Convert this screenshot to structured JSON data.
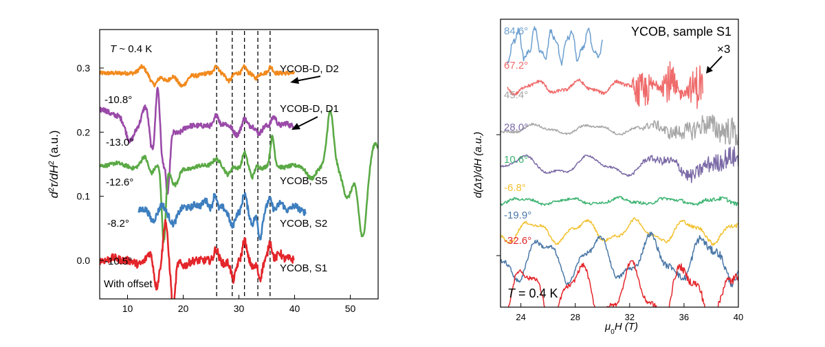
{
  "chart_data": [
    {
      "type": "line",
      "panel": "left",
      "xlabel": "",
      "ylabel_parts": [
        "d",
        "2",
        "τ",
        "/dH",
        "2",
        " (a.u.)"
      ],
      "xlim": [
        5,
        55
      ],
      "ylim": [
        -0.06,
        0.36
      ],
      "xticks": [
        10,
        20,
        30,
        40,
        50
      ],
      "xtick_labels": [
        "10",
        "20",
        "30",
        "40",
        "50"
      ],
      "yticks": [
        0.0,
        0.1,
        0.2,
        0.3
      ],
      "ytick_labels": [
        "0.0",
        "0.1",
        "0.2",
        "0.3"
      ],
      "annotations": {
        "temperature_parts": [
          "T",
          " ~ 0.4 K"
        ],
        "offset_note": "With offset"
      },
      "dashed_lines_x": [
        26.0,
        28.8,
        31.0,
        33.4,
        35.6
      ],
      "series": [
        {
          "name": "YCOB-D, D2",
          "angle": "-10.8°",
          "color": "#f28a1e",
          "x_range": [
            5,
            40
          ],
          "baseline": 0.292,
          "features": [
            [
              12.6,
              0.01,
              0.8
            ],
            [
              14.8,
              -0.018,
              0.9
            ],
            [
              17.0,
              -0.012,
              0.9
            ],
            [
              19.8,
              -0.02,
              1.2
            ],
            [
              22.5,
              -0.004,
              1.0
            ],
            [
              26.0,
              0.012,
              0.5
            ],
            [
              28.2,
              -0.012,
              0.7
            ],
            [
              31.0,
              0.01,
              0.5
            ],
            [
              33.0,
              -0.008,
              0.6
            ],
            [
              35.7,
              0.01,
              0.5
            ]
          ],
          "noise": 0.003,
          "points": []
        },
        {
          "name": "YCOB-D, D1",
          "angle": "-13.0°",
          "color": "#9a4aa8",
          "x_range": [
            5,
            40
          ],
          "baseline": 0.21,
          "features": [
            [
              5.5,
              0.025,
              2.0
            ],
            [
              8.5,
              0.012,
              1.5
            ],
            [
              10.4,
              -0.026,
              1.0
            ],
            [
              13.2,
              0.03,
              0.8
            ],
            [
              14.4,
              -0.04,
              0.6
            ],
            [
              15.4,
              0.062,
              0.45
            ],
            [
              16.3,
              -0.05,
              0.45
            ],
            [
              17.2,
              -0.104,
              0.55
            ],
            [
              19.0,
              -0.012,
              1.2
            ],
            [
              22.0,
              0.0,
              1.0
            ],
            [
              26.0,
              0.018,
              0.5
            ],
            [
              27.4,
              0.004,
              0.5
            ],
            [
              29.6,
              -0.014,
              0.8
            ],
            [
              31.0,
              0.012,
              0.5
            ],
            [
              33.6,
              -0.012,
              0.7
            ],
            [
              36.3,
              0.014,
              0.6
            ],
            [
              38.4,
              0.004,
              0.6
            ]
          ],
          "noise": 0.004,
          "points": []
        },
        {
          "name": "YCOB, S5",
          "angle": "-12.6°",
          "color": "#5aa945",
          "x_range": [
            5,
            55
          ],
          "baseline": 0.148,
          "features": [
            [
              8.0,
              0.004,
              1.0
            ],
            [
              11.0,
              -0.004,
              0.9
            ],
            [
              13.0,
              0.014,
              0.7
            ],
            [
              14.3,
              -0.012,
              0.6
            ],
            [
              16.5,
              -0.118,
              0.5
            ],
            [
              18.5,
              -0.03,
              1.0
            ],
            [
              21.0,
              -0.006,
              1.2
            ],
            [
              25.9,
              0.01,
              0.8
            ],
            [
              28.0,
              -0.014,
              0.7
            ],
            [
              29.8,
              -0.004,
              0.6
            ],
            [
              31.0,
              0.02,
              0.5
            ],
            [
              32.4,
              -0.018,
              0.5
            ],
            [
              34.2,
              -0.004,
              0.7
            ],
            [
              36.0,
              0.045,
              0.5
            ],
            [
              38.0,
              -0.003,
              1.0
            ],
            [
              43.0,
              -0.02,
              1.2
            ],
            [
              46.4,
              0.085,
              0.8
            ],
            [
              49.5,
              -0.05,
              1.2
            ],
            [
              52.2,
              -0.112,
              1.0
            ],
            [
              54.5,
              0.035,
              1.0
            ]
          ],
          "noise": 0.003,
          "points": []
        },
        {
          "name": "YCOB, S2",
          "angle": "-8.2°",
          "color": "#3d7ebf",
          "x_range": [
            12,
            42
          ],
          "baseline": 0.075,
          "features": [
            [
              13.0,
              0.005,
              1.0
            ],
            [
              14.5,
              -0.014,
              0.7
            ],
            [
              16.2,
              0.012,
              0.6
            ],
            [
              18.2,
              -0.018,
              0.8
            ],
            [
              20.2,
              0.008,
              1.0
            ],
            [
              22.2,
              0.012,
              1.0
            ],
            [
              24.0,
              0.018,
              0.8
            ],
            [
              25.7,
              0.028,
              0.5
            ],
            [
              27.0,
              0.008,
              0.6
            ],
            [
              28.8,
              -0.022,
              0.6
            ],
            [
              31.0,
              0.03,
              0.5
            ],
            [
              32.4,
              -0.018,
              0.5
            ],
            [
              33.8,
              -0.04,
              0.5
            ],
            [
              35.5,
              0.02,
              0.6
            ],
            [
              37.5,
              0.015,
              0.8
            ],
            [
              40.0,
              0.01,
              1.0
            ]
          ],
          "noise": 0.005,
          "points": []
        },
        {
          "name": "YCOB, S1",
          "angle": "-10.5°",
          "color": "#e3262b",
          "x_range": [
            5,
            40
          ],
          "baseline": 0.0,
          "features": [
            [
              7.5,
              0.004,
              1.0
            ],
            [
              12.0,
              -0.006,
              1.0
            ],
            [
              14.0,
              0.012,
              0.7
            ],
            [
              15.2,
              -0.042,
              0.6
            ],
            [
              16.8,
              0.062,
              0.5
            ],
            [
              18.2,
              -0.075,
              0.5
            ],
            [
              20.2,
              -0.008,
              1.0
            ],
            [
              25.9,
              0.018,
              0.5
            ],
            [
              27.4,
              -0.006,
              0.5
            ],
            [
              29.0,
              -0.03,
              0.6
            ],
            [
              31.0,
              0.032,
              0.5
            ],
            [
              32.6,
              -0.012,
              0.5
            ],
            [
              33.8,
              -0.028,
              0.5
            ],
            [
              35.6,
              0.028,
              0.5
            ],
            [
              37.3,
              0.012,
              0.6
            ],
            [
              39.0,
              0.003,
              0.8
            ]
          ],
          "noise": 0.006,
          "points": []
        }
      ]
    },
    {
      "type": "line",
      "panel": "right",
      "title": "YCOB, sample S1",
      "xlabel_parts": [
        "μ",
        "0",
        "H (T)"
      ],
      "ylabel_parts": [
        "d(",
        "Δτ",
        ")/dH (a.u.)"
      ],
      "xlim": [
        22.5,
        40
      ],
      "ylim": [
        0,
        11
      ],
      "xticks": [
        24,
        28,
        32,
        36,
        40
      ],
      "xtick_labels": [
        "24",
        "28",
        "32",
        "36",
        "40"
      ],
      "annotations": {
        "temperature_parts": [
          "T",
          " = 0.4 K"
        ],
        "multiplier": "×3"
      },
      "series": [
        {
          "name": "84.6°",
          "color": "#6b9ed0",
          "x_range": [
            23,
            30
          ],
          "baseline": 10.0,
          "amp": 0.5,
          "period": 1.3,
          "noise": 0.1,
          "noise_growth": 0,
          "burst": null,
          "points": []
        },
        {
          "name": "67.2°",
          "color": "#ef6b6b",
          "x_range": [
            23,
            37.4
          ],
          "baseline": 8.4,
          "amp": 0.2,
          "period": 3.1,
          "noise": 0.06,
          "noise_growth": 0,
          "burst": [
            32.2,
            37.4,
            0.85
          ],
          "points": []
        },
        {
          "name": "45.4°",
          "color": "#a6a6a6",
          "x_range": [
            22.5,
            40
          ],
          "baseline": 6.8,
          "amp": 0.15,
          "period": 4.2,
          "noise": 0.04,
          "noise_growth": 0.07,
          "burst": null,
          "points": []
        },
        {
          "name": "28.0°",
          "color": "#7b6aa6",
          "x_range": [
            22.5,
            40
          ],
          "baseline": 5.4,
          "amp": 0.3,
          "period": 5.0,
          "noise": 0.04,
          "noise_growth": 0.05,
          "burst": null,
          "points": []
        },
        {
          "name": "10.6°",
          "color": "#3cb371",
          "x_range": [
            22.5,
            40
          ],
          "baseline": 4.05,
          "amp": 0.1,
          "period": 3.6,
          "noise": 0.05,
          "noise_growth": 0.004,
          "burst": null,
          "points": []
        },
        {
          "name": "-6.8°",
          "color": "#f2c232",
          "x_range": [
            22.5,
            40
          ],
          "baseline": 2.9,
          "amp": 0.35,
          "period": 3.8,
          "noise": 0.05,
          "noise_growth": 0.004,
          "burst": null,
          "points": []
        },
        {
          "name": "-19.9°",
          "color": "#4a77a6",
          "x_range": [
            22.5,
            40
          ],
          "baseline": 1.85,
          "amp": 0.7,
          "period": 4.0,
          "noise": 0.08,
          "noise_growth": 0.012,
          "burst": null,
          "points": []
        },
        {
          "name": "-32.6°",
          "color": "#e3262b",
          "x_range": [
            22.5,
            40
          ],
          "baseline": 0.55,
          "amp": 0.9,
          "period": 3.9,
          "noise": 0.08,
          "noise_growth": 0.015,
          "burst": null,
          "points": []
        }
      ]
    }
  ]
}
